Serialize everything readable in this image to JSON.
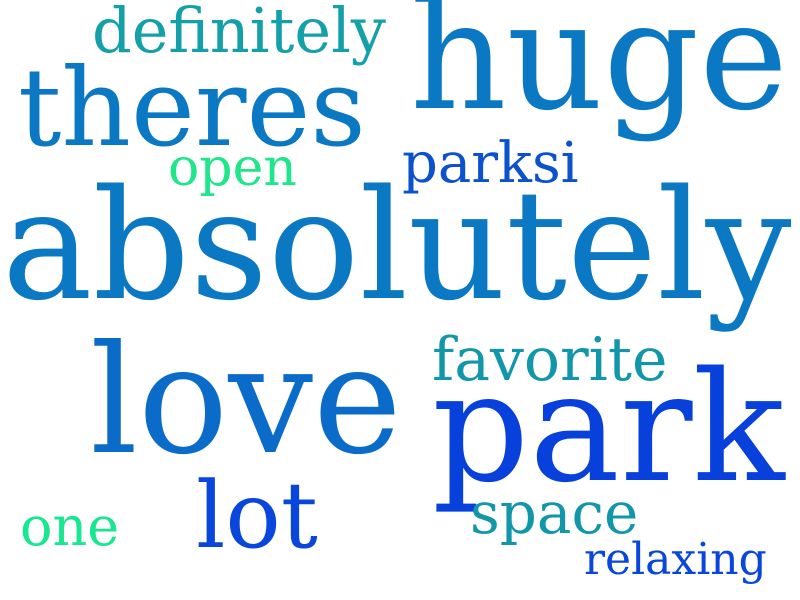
{
  "words": [
    {
      "id": "absolutely",
      "text": "absolutely",
      "color": "#0a78c2"
    },
    {
      "id": "huge",
      "text": "huge",
      "color": "#0a78c2"
    },
    {
      "id": "park",
      "text": "park",
      "color": "#0840dc"
    },
    {
      "id": "love",
      "text": "love",
      "color": "#0a6cc8"
    },
    {
      "id": "theres",
      "text": "theres",
      "color": "#0a78c2"
    },
    {
      "id": "definitely",
      "text": "definitely",
      "color": "#14a0a8"
    },
    {
      "id": "favorite",
      "text": "favorite",
      "color": "#1296aa"
    },
    {
      "id": "lot",
      "text": "lot",
      "color": "#0846dc"
    },
    {
      "id": "parksi",
      "text": "parksi",
      "color": "#0c52cc"
    },
    {
      "id": "open",
      "text": "open",
      "color": "#1ee68a"
    },
    {
      "id": "space",
      "text": "space",
      "color": "#1296aa"
    },
    {
      "id": "one",
      "text": "one",
      "color": "#18e690"
    },
    {
      "id": "relaxing",
      "text": "relaxing",
      "color": "#0846dc"
    }
  ]
}
